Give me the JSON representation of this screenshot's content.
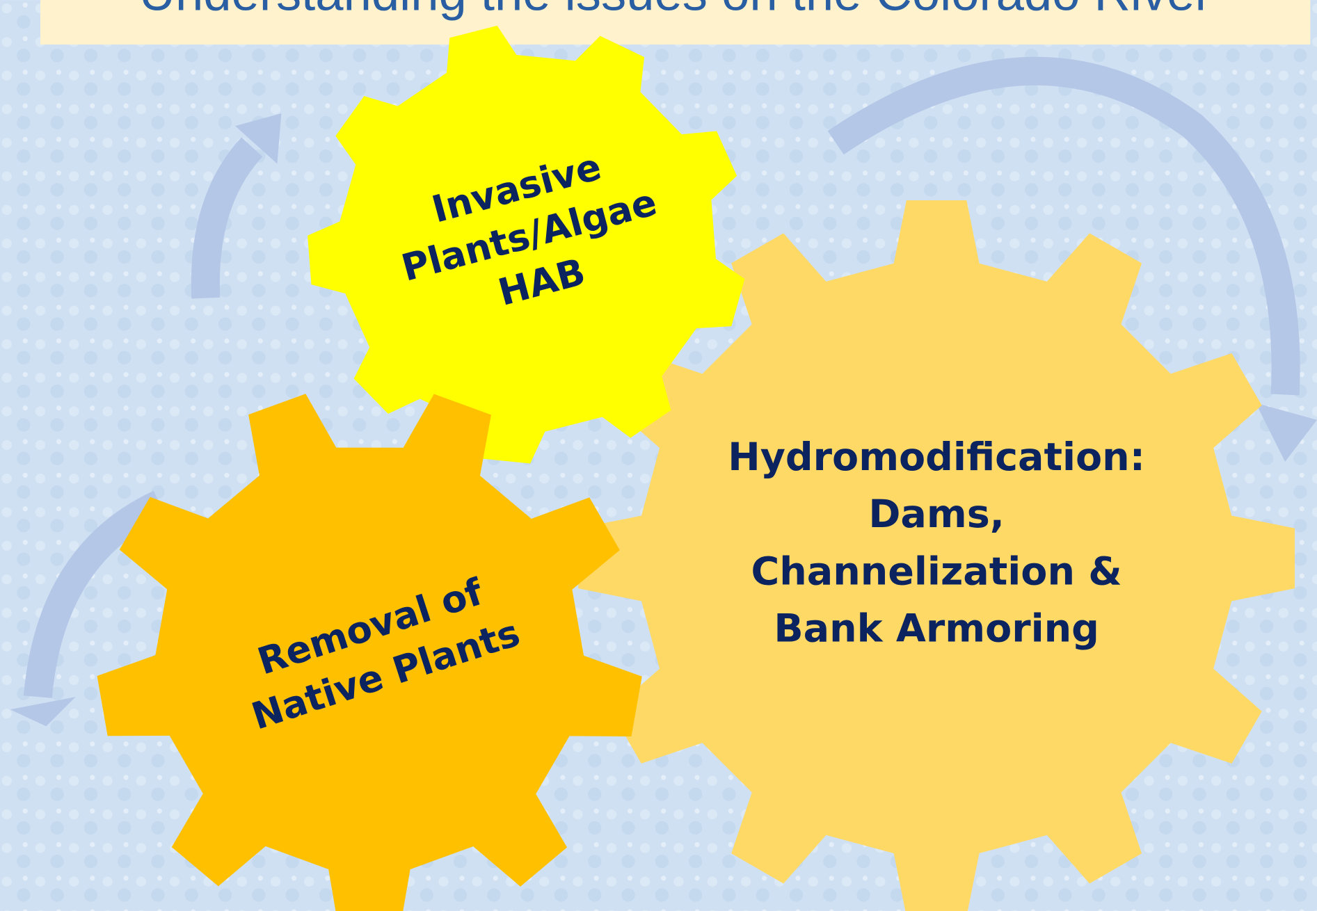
{
  "header": {
    "title": "Understanding the issues on the Colorado River"
  },
  "gears": [
    {
      "lines": [
        "Invasive",
        "Plants/Algae",
        "HAB"
      ]
    },
    {
      "lines": [
        "Removal of",
        "Native Plants"
      ]
    },
    {
      "lines": [
        "Hydromodification:",
        "Dams,",
        "Channelization &",
        "Bank Armoring"
      ]
    }
  ]
}
